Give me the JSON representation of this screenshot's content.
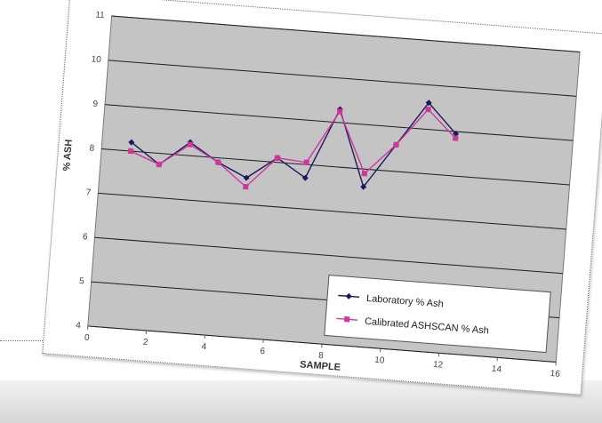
{
  "chart_data": {
    "type": "line",
    "title": "",
    "xlabel": "SAMPLE",
    "ylabel": "% ASH",
    "xlim": [
      0,
      16
    ],
    "ylim": [
      4,
      11
    ],
    "xticks": [
      "0",
      "2",
      "4",
      "6",
      "8",
      "10",
      "12",
      "14",
      "16"
    ],
    "yticks": [
      "4",
      "5",
      "6",
      "7",
      "8",
      "9",
      "10",
      "11"
    ],
    "grid": "horizontal",
    "legend": "bottom-right",
    "series": [
      {
        "name": "Laboratory % Ash",
        "color": "#1a1a5a",
        "marker": "diamond",
        "x": [
          1,
          2,
          3,
          4,
          5,
          6,
          7,
          8,
          9,
          10,
          11,
          12
        ],
        "y": [
          8.2,
          7.75,
          8.3,
          7.9,
          7.6,
          8.1,
          7.7,
          9.3,
          7.6,
          8.6,
          9.6,
          8.95
        ]
      },
      {
        "name": "Calibrated ASHSCAN % Ash",
        "color": "#d0359e",
        "marker": "square",
        "x": [
          1,
          2,
          3,
          4,
          5,
          6,
          7,
          8,
          9,
          10,
          11,
          12
        ],
        "y": [
          8.0,
          7.75,
          8.25,
          7.9,
          7.4,
          8.1,
          8.05,
          9.25,
          7.9,
          8.6,
          9.45,
          8.85
        ]
      }
    ]
  }
}
